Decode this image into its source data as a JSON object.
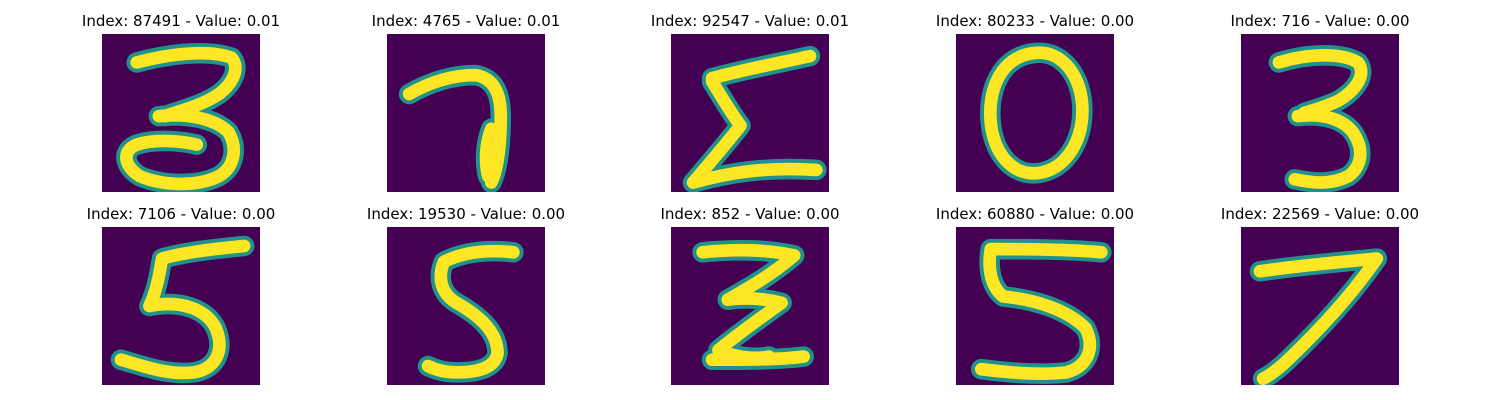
{
  "colors": {
    "background": "#440154",
    "stroke_edge": "#21918c",
    "stroke_core": "#fde725"
  },
  "panels": [
    {
      "title": "Index: 87491 - Value: 0.01",
      "digit_shape": "3"
    },
    {
      "title": "Index: 4765 - Value: 0.01",
      "digit_shape": "7"
    },
    {
      "title": "Index: 92547 - Value: 0.01",
      "digit_shape": "sigma"
    },
    {
      "title": "Index: 80233 - Value: 0.00",
      "digit_shape": "0"
    },
    {
      "title": "Index: 716 - Value: 0.00",
      "digit_shape": "3"
    },
    {
      "title": "Index: 7106 - Value: 0.00",
      "digit_shape": "5"
    },
    {
      "title": "Index: 19530 - Value: 0.00",
      "digit_shape": "5"
    },
    {
      "title": "Index: 852 - Value: 0.00",
      "digit_shape": "z"
    },
    {
      "title": "Index: 60880 - Value: 0.00",
      "digit_shape": "5"
    },
    {
      "title": "Index: 22569 - Value: 0.00",
      "digit_shape": "7"
    }
  ]
}
